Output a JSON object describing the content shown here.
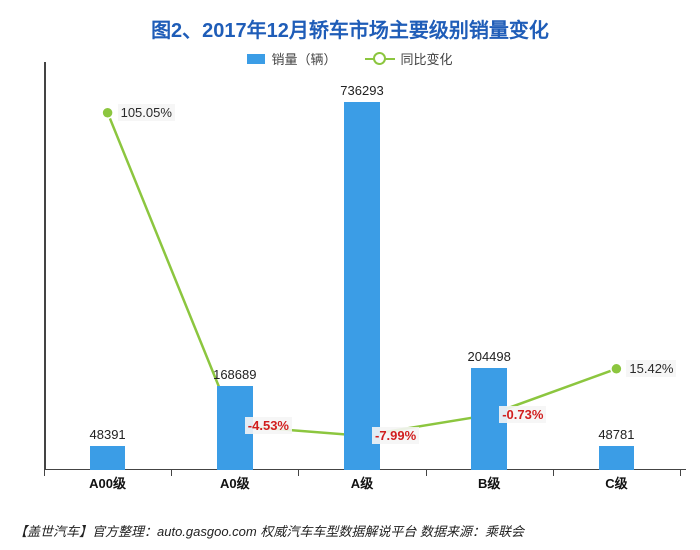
{
  "title": {
    "text": "图2、2017年12月轿车市场主要级别销量变化",
    "fontsize": 20,
    "color": "#1f5db8"
  },
  "legend": {
    "bar_label": "销量（辆）",
    "line_label": "同比变化"
  },
  "colors": {
    "bar": "#3b9de6",
    "line": "#8cc63f",
    "axis": "#444444",
    "neg_text": "#d11f1f",
    "pos_text": "#2a2a2a",
    "bg": "#ffffff"
  },
  "chart": {
    "type": "bar+line",
    "categories": [
      "A00级",
      "A0级",
      "A级",
      "B级",
      "C级"
    ],
    "bar_values": [
      48391,
      168689,
      736293,
      204498,
      48781
    ],
    "line_values_pct": [
      105.05,
      -4.53,
      -7.99,
      -0.73,
      15.42
    ],
    "bar_ymax": 800000,
    "line_ymin": -20,
    "line_ymax": 120,
    "bar_width_ratio": 0.28,
    "label_fontsize": 13,
    "xlabel_fontweight": "bold"
  },
  "footer": "【盖世汽车】官方整理：auto.gasgoo.com 权威汽车车型数据解说平台 数据来源：乘联会"
}
